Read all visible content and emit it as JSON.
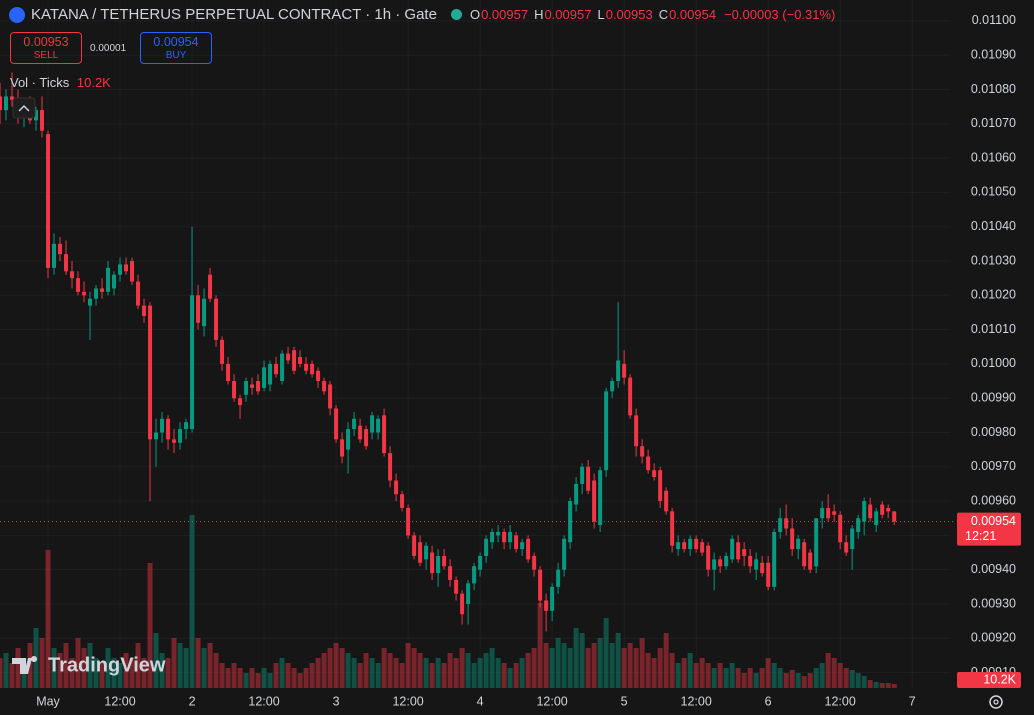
{
  "chart_data": {
    "type": "candlestick",
    "title": "KATANA / TETHERUS PERPETUAL CONTRACT · 1h · Gate",
    "legend": [
      {
        "label": "O",
        "value": "0.00957"
      },
      {
        "label": "H",
        "value": "0.00957"
      },
      {
        "label": "L",
        "value": "0.00953"
      },
      {
        "label": "C",
        "value": "0.00954"
      }
    ],
    "change": "−0.00003 (−0.31%)",
    "sell": {
      "price": "0.00953",
      "label": "SELL"
    },
    "spread": "0.00001",
    "buy": {
      "price": "0.00954",
      "label": "BUY"
    },
    "volume_legend": {
      "label": "Vol · Ticks",
      "value": "10.2K"
    },
    "last_price_label": "0.00954",
    "countdown": "12:21",
    "watermark": "TradingView",
    "up_color": "#089981",
    "down_color": "#f23645",
    "open": [
      0.01078,
      0.01074,
      0.01078,
      0.01077,
      0.01072,
      0.01075,
      0.01071,
      0.01074,
      0.01067,
      0.01028,
      0.01035,
      0.01032,
      0.01027,
      0.01025,
      0.01021,
      0.01017,
      0.01019,
      0.01022,
      0.01021,
      0.01022,
      0.01026,
      0.01029,
      0.0103,
      0.01024,
      0.01017,
      0.01017,
      0.00978,
      0.0098,
      0.00984,
      0.00978,
      0.00977,
      0.00981,
      0.00981,
      0.0102,
      0.01011,
      0.01026,
      0.01019,
      0.01007,
      0.01,
      0.00995,
      0.0099,
      0.00991,
      0.00994,
      0.00995,
      0.00993,
      0.00994,
      0.01,
      0.00995,
      0.01003,
      0.01004,
      0.01002,
      0.01,
      0.01,
      0.00998,
      0.00995,
      0.00994,
      0.00987,
      0.00978,
      0.00975,
      0.00981,
      0.00982,
      0.00981,
      0.0098,
      0.0098,
      0.00985,
      0.00974,
      0.00966,
      0.00962,
      0.00958,
      0.0095,
      0.00948,
      0.00943,
      0.00945,
      0.00939,
      0.00944,
      0.00941,
      0.00937,
      0.00933,
      0.0093,
      0.00936,
      0.0094,
      0.00944,
      0.00948,
      0.0095,
      0.00951,
      0.00948,
      0.0095,
      0.00946,
      0.00949,
      0.00944,
      0.0094,
      0.00931,
      0.00928,
      0.00935,
      0.0094,
      0.00948,
      0.00959,
      0.00965,
      0.0097,
      0.00966,
      0.00953,
      0.00969,
      0.00992,
      0.00995,
      0.01,
      0.00996,
      0.00985,
      0.00976,
      0.00973,
      0.00969,
      0.00969,
      0.00963,
      0.00957,
      0.00946,
      0.00948,
      0.00946,
      0.00949,
      0.00948,
      0.00947,
      0.0094,
      0.00943,
      0.00941,
      0.00943,
      0.00948,
      0.00946,
      0.00944,
      0.0094,
      0.00942,
      0.00942,
      0.00935,
      0.00951,
      0.00955,
      0.00952,
      0.00946,
      0.00948,
      0.00945,
      0.00941,
      0.00955,
      0.00958,
      0.00957,
      0.00956,
      0.00948,
      0.00946,
      0.00951,
      0.00954,
      0.00959,
      0.00953,
      0.00959,
      0.00958,
      0.00957
    ],
    "high": [
      0.01082,
      0.0108,
      0.01085,
      0.0108,
      0.01076,
      0.01078,
      0.01075,
      0.01078,
      0.01068,
      0.01038,
      0.01037,
      0.01036,
      0.0103,
      0.01027,
      0.01024,
      0.01021,
      0.01023,
      0.01025,
      0.0103,
      0.01027,
      0.01031,
      0.01031,
      0.01031,
      0.01026,
      0.01019,
      0.01018,
      0.00984,
      0.00986,
      0.00985,
      0.00981,
      0.00983,
      0.00984,
      0.0104,
      0.01023,
      0.01022,
      0.01028,
      0.0102,
      0.01008,
      0.01002,
      0.00997,
      0.00991,
      0.00996,
      0.00996,
      0.00997,
      0.01001,
      0.01001,
      0.01002,
      0.01004,
      0.01005,
      0.01005,
      0.01004,
      0.01002,
      0.01001,
      0.00999,
      0.00996,
      0.00995,
      0.00988,
      0.0098,
      0.00983,
      0.00986,
      0.00984,
      0.00982,
      0.00986,
      0.00985,
      0.00987,
      0.00976,
      0.00968,
      0.00963,
      0.00959,
      0.00951,
      0.0095,
      0.00948,
      0.00947,
      0.00946,
      0.00946,
      0.00943,
      0.00938,
      0.00934,
      0.00937,
      0.00942,
      0.00945,
      0.0095,
      0.00952,
      0.00953,
      0.00952,
      0.00953,
      0.00951,
      0.00949,
      0.0095,
      0.00945,
      0.00941,
      0.00933,
      0.00936,
      0.00942,
      0.0095,
      0.00961,
      0.00967,
      0.00971,
      0.00972,
      0.00968,
      0.0097,
      0.00993,
      0.00996,
      0.01018,
      0.01004,
      0.00997,
      0.00987,
      0.00978,
      0.00975,
      0.00971,
      0.0097,
      0.00964,
      0.00958,
      0.0095,
      0.00949,
      0.0095,
      0.0095,
      0.00949,
      0.00948,
      0.00945,
      0.00944,
      0.00945,
      0.0095,
      0.0095,
      0.00948,
      0.00946,
      0.00945,
      0.00944,
      0.00944,
      0.00952,
      0.00958,
      0.00959,
      0.00955,
      0.0095,
      0.00949,
      0.00946,
      0.00955,
      0.0096,
      0.00962,
      0.00959,
      0.00957,
      0.0095,
      0.00953,
      0.00956,
      0.00961,
      0.00961,
      0.00958,
      0.0096,
      0.00959,
      0.00957
    ],
    "low": [
      0.0107,
      0.01071,
      0.01075,
      0.0107,
      0.01069,
      0.0107,
      0.01068,
      0.01066,
      0.01025,
      0.01026,
      0.0103,
      0.01026,
      0.01022,
      0.0102,
      0.01018,
      0.01007,
      0.01017,
      0.01019,
      0.0102,
      0.0102,
      0.01024,
      0.01026,
      0.01023,
      0.01016,
      0.01012,
      0.0096,
      0.0097,
      0.00977,
      0.00975,
      0.00974,
      0.00975,
      0.00978,
      0.0098,
      0.0101,
      0.01008,
      0.01018,
      0.01005,
      0.00998,
      0.00994,
      0.00989,
      0.00984,
      0.00989,
      0.00991,
      0.00991,
      0.00992,
      0.00992,
      0.00996,
      0.00994,
      0.01,
      0.00997,
      0.00999,
      0.00997,
      0.00996,
      0.00993,
      0.00991,
      0.00985,
      0.00977,
      0.00971,
      0.00968,
      0.00979,
      0.00977,
      0.00975,
      0.00978,
      0.00978,
      0.00973,
      0.00964,
      0.0096,
      0.00957,
      0.00949,
      0.00943,
      0.00941,
      0.0094,
      0.00937,
      0.00935,
      0.0094,
      0.00935,
      0.00931,
      0.00924,
      0.00924,
      0.00934,
      0.00938,
      0.00942,
      0.00946,
      0.00948,
      0.00946,
      0.00946,
      0.00945,
      0.00944,
      0.00942,
      0.00938,
      0.00929,
      0.00922,
      0.00925,
      0.00933,
      0.00938,
      0.00946,
      0.00957,
      0.00962,
      0.00962,
      0.00952,
      0.00951,
      0.00967,
      0.0099,
      0.00993,
      0.00994,
      0.00984,
      0.00973,
      0.00971,
      0.00968,
      0.00966,
      0.00958,
      0.00956,
      0.00945,
      0.00944,
      0.00945,
      0.00944,
      0.00945,
      0.00944,
      0.00938,
      0.00934,
      0.00939,
      0.0094,
      0.00942,
      0.00942,
      0.00941,
      0.00939,
      0.00937,
      0.00938,
      0.00934,
      0.00934,
      0.00949,
      0.0095,
      0.00944,
      0.00943,
      0.0094,
      0.00939,
      0.00939,
      0.00952,
      0.00954,
      0.00954,
      0.00946,
      0.00944,
      0.0094,
      0.00949,
      0.0095,
      0.00954,
      0.00951,
      0.00955,
      0.00955,
      0.00953
    ],
    "close": [
      0.01074,
      0.01078,
      0.01077,
      0.01072,
      0.01075,
      0.01071,
      0.01074,
      0.01068,
      0.01028,
      0.01035,
      0.01032,
      0.01027,
      0.01025,
      0.01021,
      0.0102,
      0.01019,
      0.01022,
      0.01021,
      0.01028,
      0.01026,
      0.01029,
      0.01027,
      0.01024,
      0.01017,
      0.01014,
      0.00978,
      0.0098,
      0.00984,
      0.00978,
      0.00977,
      0.00981,
      0.00983,
      0.0102,
      0.01012,
      0.01019,
      0.01019,
      0.01007,
      0.01,
      0.00995,
      0.0099,
      0.00988,
      0.00995,
      0.00993,
      0.00992,
      0.00999,
      0.01,
      0.00997,
      0.01003,
      0.01001,
      0.00998,
      0.01,
      0.00998,
      0.00997,
      0.00995,
      0.00992,
      0.00987,
      0.00978,
      0.00973,
      0.00981,
      0.00984,
      0.00978,
      0.00976,
      0.00985,
      0.00984,
      0.00974,
      0.00966,
      0.00962,
      0.00958,
      0.0095,
      0.00944,
      0.00942,
      0.00947,
      0.00939,
      0.00944,
      0.00941,
      0.00937,
      0.00933,
      0.00927,
      0.00936,
      0.00941,
      0.00944,
      0.00949,
      0.00951,
      0.00951,
      0.00948,
      0.00951,
      0.00946,
      0.00948,
      0.00943,
      0.0094,
      0.00931,
      0.00928,
      0.00935,
      0.0094,
      0.00949,
      0.0096,
      0.00965,
      0.0097,
      0.00963,
      0.00954,
      0.00969,
      0.00992,
      0.00995,
      0.01001,
      0.00996,
      0.00985,
      0.00976,
      0.00973,
      0.00969,
      0.00967,
      0.0096,
      0.00957,
      0.00947,
      0.00948,
      0.00946,
      0.00949,
      0.00946,
      0.00945,
      0.0094,
      0.00943,
      0.00941,
      0.00944,
      0.00949,
      0.00943,
      0.00944,
      0.00941,
      0.00943,
      0.00939,
      0.00935,
      0.00951,
      0.00955,
      0.00952,
      0.00946,
      0.00949,
      0.00941,
      0.0094,
      0.00955,
      0.00958,
      0.00955,
      0.00956,
      0.00948,
      0.00945,
      0.00952,
      0.00955,
      0.0096,
      0.00955,
      0.00957,
      0.00956,
      0.00957,
      0.00954
    ],
    "volume": [
      76500,
      89250,
      63750,
      102000,
      76500,
      114750,
      153000,
      127500,
      351900,
      102000,
      89250,
      114750,
      76500,
      127500,
      102000,
      114750,
      76500,
      63750,
      102000,
      76500,
      63750,
      89250,
      76500,
      114750,
      76500,
      318750,
      140250,
      89250,
      76500,
      127500,
      114750,
      102000,
      441150,
      127500,
      102000,
      114750,
      89250,
      63750,
      51000,
      63750,
      51000,
      38250,
      51000,
      38250,
      51000,
      38250,
      63750,
      76500,
      63750,
      51000,
      38250,
      51000,
      63750,
      76500,
      89250,
      102000,
      114750,
      102000,
      89250,
      76500,
      63750,
      89250,
      76500,
      63750,
      102000,
      89250,
      76500,
      63750,
      114750,
      102000,
      89250,
      76500,
      63750,
      76500,
      63750,
      89250,
      76500,
      102000,
      89250,
      63750,
      76500,
      89250,
      102000,
      76500,
      63750,
      51000,
      63750,
      76500,
      89250,
      102000,
      216750,
      114750,
      102000,
      127500,
      114750,
      102000,
      153000,
      140250,
      102000,
      114750,
      127500,
      178500,
      114750,
      140250,
      102000,
      114750,
      102000,
      127500,
      89250,
      76500,
      102000,
      140250,
      89250,
      63750,
      76500,
      89250,
      63750,
      76500,
      63750,
      51000,
      63750,
      51000,
      63750,
      51000,
      38250,
      51000,
      38250,
      51000,
      76500,
      63750,
      51000,
      38250,
      45900,
      38250,
      30600,
      38250,
      51000,
      63750,
      89250,
      76500,
      63750,
      51000,
      45900,
      38250,
      30600,
      20400,
      15300,
      12750,
      12750,
      10200
    ],
    "ylim": [
      0.009055,
      0.011061
    ],
    "yticks": [
      {
        "value": 0.011,
        "label": "0.01100"
      },
      {
        "value": 0.0109,
        "label": "0.01090"
      },
      {
        "value": 0.0108,
        "label": "0.01080"
      },
      {
        "value": 0.0107,
        "label": "0.01070"
      },
      {
        "value": 0.0106,
        "label": "0.01060"
      },
      {
        "value": 0.0105,
        "label": "0.01050"
      },
      {
        "value": 0.0104,
        "label": "0.01040"
      },
      {
        "value": 0.0103,
        "label": "0.01030"
      },
      {
        "value": 0.0102,
        "label": "0.01020"
      },
      {
        "value": 0.0101,
        "label": "0.01010"
      },
      {
        "value": 0.01,
        "label": "0.01000"
      },
      {
        "value": 0.0099,
        "label": "0.00990"
      },
      {
        "value": 0.0098,
        "label": "0.00980"
      },
      {
        "value": 0.0097,
        "label": "0.00970"
      },
      {
        "value": 0.0096,
        "label": "0.00960"
      },
      {
        "value": 0.0095,
        "label": "0.00950"
      },
      {
        "value": 0.0094,
        "label": "0.00940"
      },
      {
        "value": 0.0093,
        "label": "0.00930"
      },
      {
        "value": 0.0092,
        "label": "0.00920"
      },
      {
        "value": 0.0091,
        "label": "0.00910"
      }
    ],
    "xlim": [
      0,
      158.3
    ],
    "xticks": [
      {
        "value": 8,
        "label": "May"
      },
      {
        "value": 20,
        "label": "12:00"
      },
      {
        "value": 32,
        "label": "2"
      },
      {
        "value": 44,
        "label": "12:00"
      },
      {
        "value": 56,
        "label": "3"
      },
      {
        "value": 68,
        "label": "12:00"
      },
      {
        "value": 80,
        "label": "4"
      },
      {
        "value": 92,
        "label": "12:00"
      },
      {
        "value": 104,
        "label": "5"
      },
      {
        "value": 116,
        "label": "12:00"
      },
      {
        "value": 128,
        "label": "6"
      },
      {
        "value": 140,
        "label": "12:00"
      },
      {
        "value": 152,
        "label": "7"
      }
    ],
    "grid": true
  }
}
